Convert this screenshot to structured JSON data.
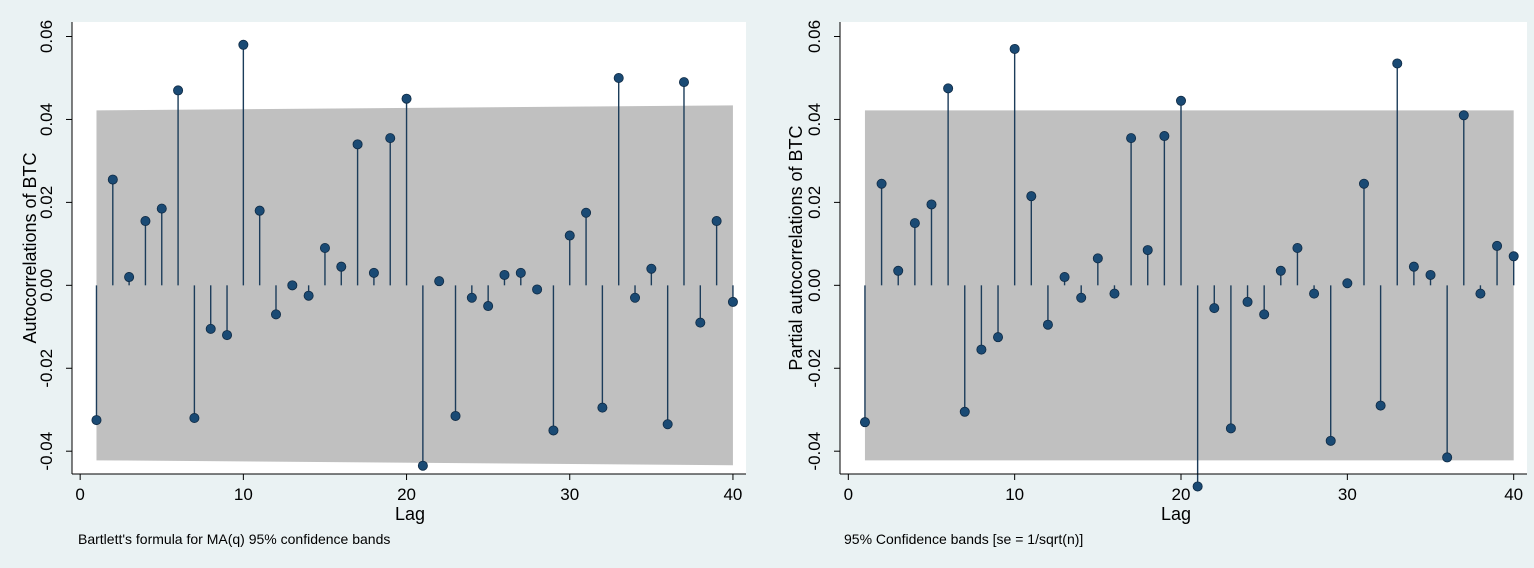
{
  "chart_data": [
    {
      "type": "stem",
      "ylabel": "Autocorrelations of BTC",
      "xlabel": "Lag",
      "note": "Bartlett's formula for MA(q) 95% confidence bands",
      "xlim": [
        -0.5,
        40.8
      ],
      "ylim": [
        -0.0455,
        0.0635
      ],
      "x_ticks": [
        0,
        10,
        20,
        30,
        40
      ],
      "y_ticks": [
        -0.04,
        -0.02,
        0.0,
        0.02,
        0.04,
        0.06
      ],
      "y_tick_labels": [
        "-0.04",
        "-0.02",
        "0.00",
        "0.02",
        "0.04",
        "0.06"
      ],
      "grid": false,
      "confidence_band": {
        "lags": [
          1,
          40
        ],
        "upper": [
          0.0422,
          0.0434
        ],
        "lower": [
          -0.0422,
          -0.0434
        ]
      },
      "lags": [
        1,
        2,
        3,
        4,
        5,
        6,
        7,
        8,
        9,
        10,
        11,
        12,
        13,
        14,
        15,
        16,
        17,
        18,
        19,
        20,
        21,
        22,
        23,
        24,
        25,
        26,
        27,
        28,
        29,
        30,
        31,
        32,
        33,
        34,
        35,
        36,
        37,
        38,
        39,
        40
      ],
      "values": [
        -0.0325,
        0.0255,
        0.002,
        0.0155,
        0.0185,
        0.047,
        -0.032,
        -0.0105,
        -0.012,
        0.058,
        0.018,
        -0.007,
        0.0,
        -0.0025,
        0.009,
        0.0045,
        0.034,
        0.003,
        0.0355,
        0.045,
        -0.0435,
        0.001,
        -0.0315,
        -0.003,
        -0.005,
        0.0025,
        0.003,
        -0.001,
        -0.035,
        0.012,
        0.0175,
        -0.0295,
        0.05,
        -0.003,
        0.004,
        -0.0335,
        0.049,
        -0.009,
        0.0155,
        -0.004
      ]
    },
    {
      "type": "stem",
      "ylabel": "Partial autocorrelations of BTC",
      "xlabel": "Lag",
      "note": "95% Confidence bands [se = 1/sqrt(n)]",
      "xlim": [
        -0.5,
        40.8
      ],
      "ylim": [
        -0.0455,
        0.0635
      ],
      "x_ticks": [
        0,
        10,
        20,
        30,
        40
      ],
      "y_ticks": [
        -0.04,
        -0.02,
        0.0,
        0.02,
        0.04,
        0.06
      ],
      "y_tick_labels": [
        "-0.04",
        "-0.02",
        "0.00",
        "0.02",
        "0.04",
        "0.06"
      ],
      "grid": false,
      "confidence_band": {
        "lags": [
          1,
          40
        ],
        "upper": [
          0.0422,
          0.0422
        ],
        "lower": [
          -0.0422,
          -0.0422
        ]
      },
      "lags": [
        1,
        2,
        3,
        4,
        5,
        6,
        7,
        8,
        9,
        10,
        11,
        12,
        13,
        14,
        15,
        16,
        17,
        18,
        19,
        20,
        21,
        22,
        23,
        24,
        25,
        26,
        27,
        28,
        29,
        30,
        31,
        32,
        33,
        34,
        35,
        36,
        37,
        38,
        39,
        40
      ],
      "values": [
        -0.033,
        0.0245,
        0.0035,
        0.015,
        0.0195,
        0.0475,
        -0.0305,
        -0.0155,
        -0.0125,
        0.057,
        0.0215,
        -0.0095,
        0.002,
        -0.003,
        0.0065,
        -0.002,
        0.0355,
        0.0085,
        0.036,
        0.0445,
        -0.0485,
        -0.0055,
        -0.0345,
        -0.004,
        -0.007,
        0.0035,
        0.009,
        -0.002,
        -0.0375,
        0.0005,
        0.0245,
        -0.029,
        0.0535,
        0.0045,
        0.0025,
        -0.0415,
        0.041,
        -0.002,
        0.0095,
        0.007
      ]
    }
  ]
}
